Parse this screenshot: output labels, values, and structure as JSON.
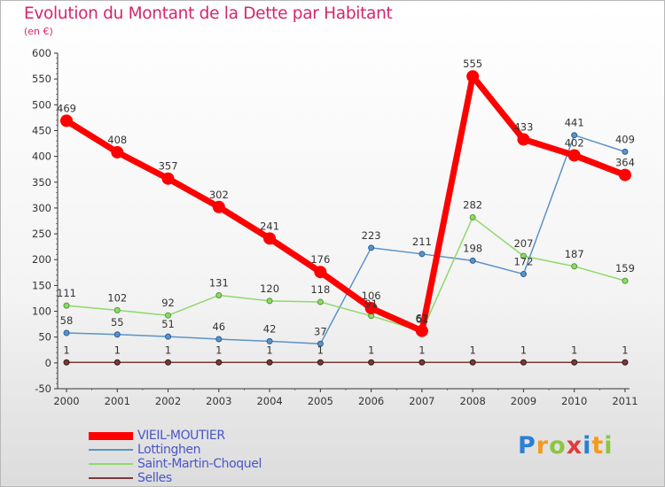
{
  "title": "Evolution du Montant de la Dette par Habitant",
  "unit": "(en €)",
  "logo": {
    "text": "Proxiti",
    "letters": [
      "P",
      "r",
      "o",
      "x",
      "i",
      "t",
      "i"
    ],
    "colors": [
      "#2b7fd4",
      "#f39a1e",
      "#8cc63f",
      "#e23b3b",
      "#2b7fd4",
      "#f39a1e",
      "#8cc63f"
    ]
  },
  "chart_data": {
    "type": "line",
    "title": "Evolution du Montant de la Dette par Habitant",
    "ylabel": "(en €)",
    "x": [
      "2000",
      "2001",
      "2002",
      "2003",
      "2004",
      "2005",
      "2006",
      "2007",
      "2008",
      "2009",
      "2010",
      "2011"
    ],
    "ylim": [
      -50,
      600
    ],
    "yticks": [
      -50,
      0,
      50,
      100,
      150,
      200,
      250,
      300,
      350,
      400,
      450,
      500,
      550,
      600
    ],
    "grid": false,
    "legend": "bottom-left",
    "series": [
      {
        "name": "VIEIL-MOUTIER",
        "color": "#ff0000",
        "values": [
          469,
          408,
          357,
          302,
          241,
          176,
          106,
          62,
          555,
          433,
          402,
          364
        ]
      },
      {
        "name": "Lottinghen",
        "color": "#5b93c6",
        "values": [
          58,
          55,
          51,
          46,
          42,
          37,
          223,
          211,
          198,
          172,
          441,
          409
        ]
      },
      {
        "name": "Saint-Martin-Choquel",
        "color": "#8fd96b",
        "values": [
          111,
          102,
          92,
          131,
          120,
          118,
          91,
          61,
          282,
          207,
          187,
          159
        ]
      },
      {
        "name": "Selles",
        "color": "#7a3a3a",
        "values": [
          1,
          1,
          1,
          1,
          1,
          1,
          1,
          1,
          1,
          1,
          1,
          1
        ]
      }
    ]
  }
}
